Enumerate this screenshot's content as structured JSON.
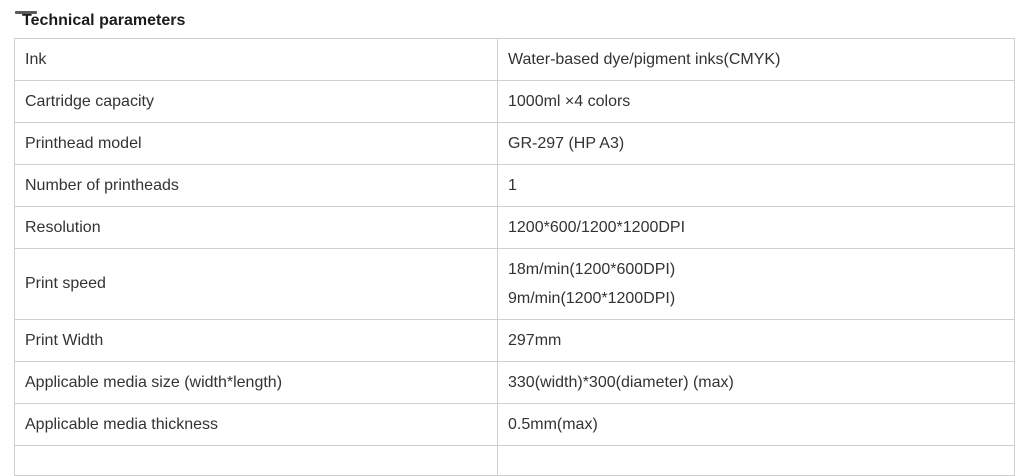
{
  "section": {
    "title": "Technical parameters"
  },
  "table": {
    "rows": [
      {
        "param": "Ink",
        "values": [
          "Water-based dye/pigment inks(CMYK)"
        ]
      },
      {
        "param": "Cartridge capacity",
        "values": [
          "1000ml ×4 colors"
        ]
      },
      {
        "param": "Printhead model",
        "values": [
          "GR-297 (HP A3)"
        ]
      },
      {
        "param": "Number of printheads",
        "values": [
          "1"
        ]
      },
      {
        "param": "Resolution",
        "values": [
          "1200*600/1200*1200DPI"
        ]
      },
      {
        "param": "Print speed",
        "values": [
          "18m/min(1200*600DPI)",
          "9m/min(1200*1200DPI)"
        ]
      },
      {
        "param": "Print Width",
        "values": [
          "297mm"
        ]
      },
      {
        "param": "Applicable media size (width*length)",
        "values": [
          "330(width)*300(diameter) (max)"
        ]
      },
      {
        "param": "Applicable media thickness",
        "values": [
          "0.5mm(max)"
        ]
      }
    ],
    "partial_next_row_visible": true
  },
  "colors": {
    "background": "#ffffff",
    "border": "#cfcfcf",
    "cell_text": "#333333",
    "title_text": "#1c1c1c"
  }
}
